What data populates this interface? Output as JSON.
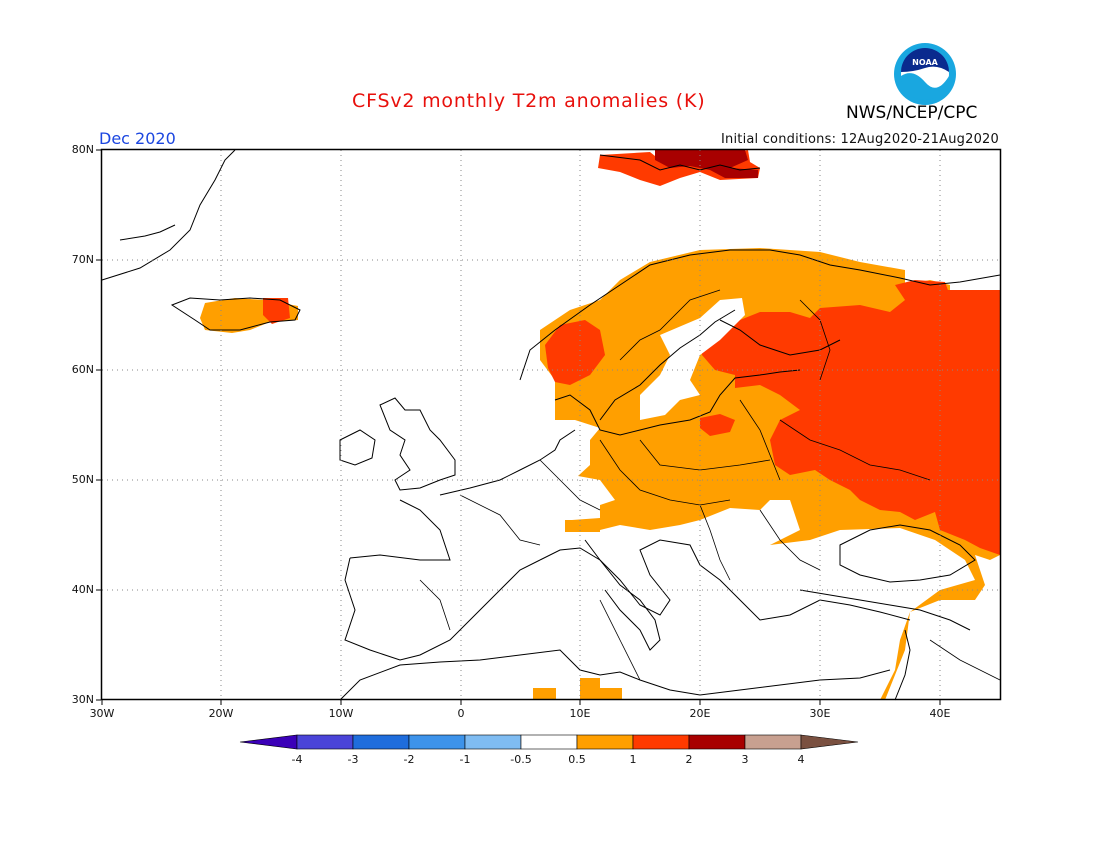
{
  "header": {
    "title": "CFSv2 monthly T2m anomalies (K)",
    "agency": "NWS/NCEP/CPC",
    "month": "Dec 2020",
    "initial_conditions": "Initial conditions: 12Aug2020-21Aug2020",
    "logo_text": "NOAA"
  },
  "map": {
    "lat_labels": [
      "80N",
      "70N",
      "60N",
      "50N",
      "40N",
      "30N"
    ],
    "lon_labels": [
      "30W",
      "20W",
      "10W",
      "0",
      "10E",
      "20E",
      "30E",
      "40E"
    ],
    "extent": {
      "lon_min": -30,
      "lon_max": 45,
      "lat_min": 30,
      "lat_max": 80
    },
    "grid": "dotted",
    "colors": {
      "bin_0_5_1": "#ff9f00",
      "bin_1_2": "#ff3a00",
      "bin_2_3": "#a80000",
      "land_outline": "#000000"
    }
  },
  "colorbar": {
    "tick_labels": [
      "-4",
      "-3",
      "-2",
      "-1",
      "-0.5",
      "0.5",
      "1",
      "2",
      "3",
      "4"
    ],
    "colors": [
      "#3b00b8",
      "#4a44d8",
      "#1f6ddc",
      "#3d93ea",
      "#7fbcf2",
      "#ffffff",
      "#ff9f00",
      "#ff3a00",
      "#a80000",
      "#c8a090",
      "#7a5040"
    ]
  }
}
